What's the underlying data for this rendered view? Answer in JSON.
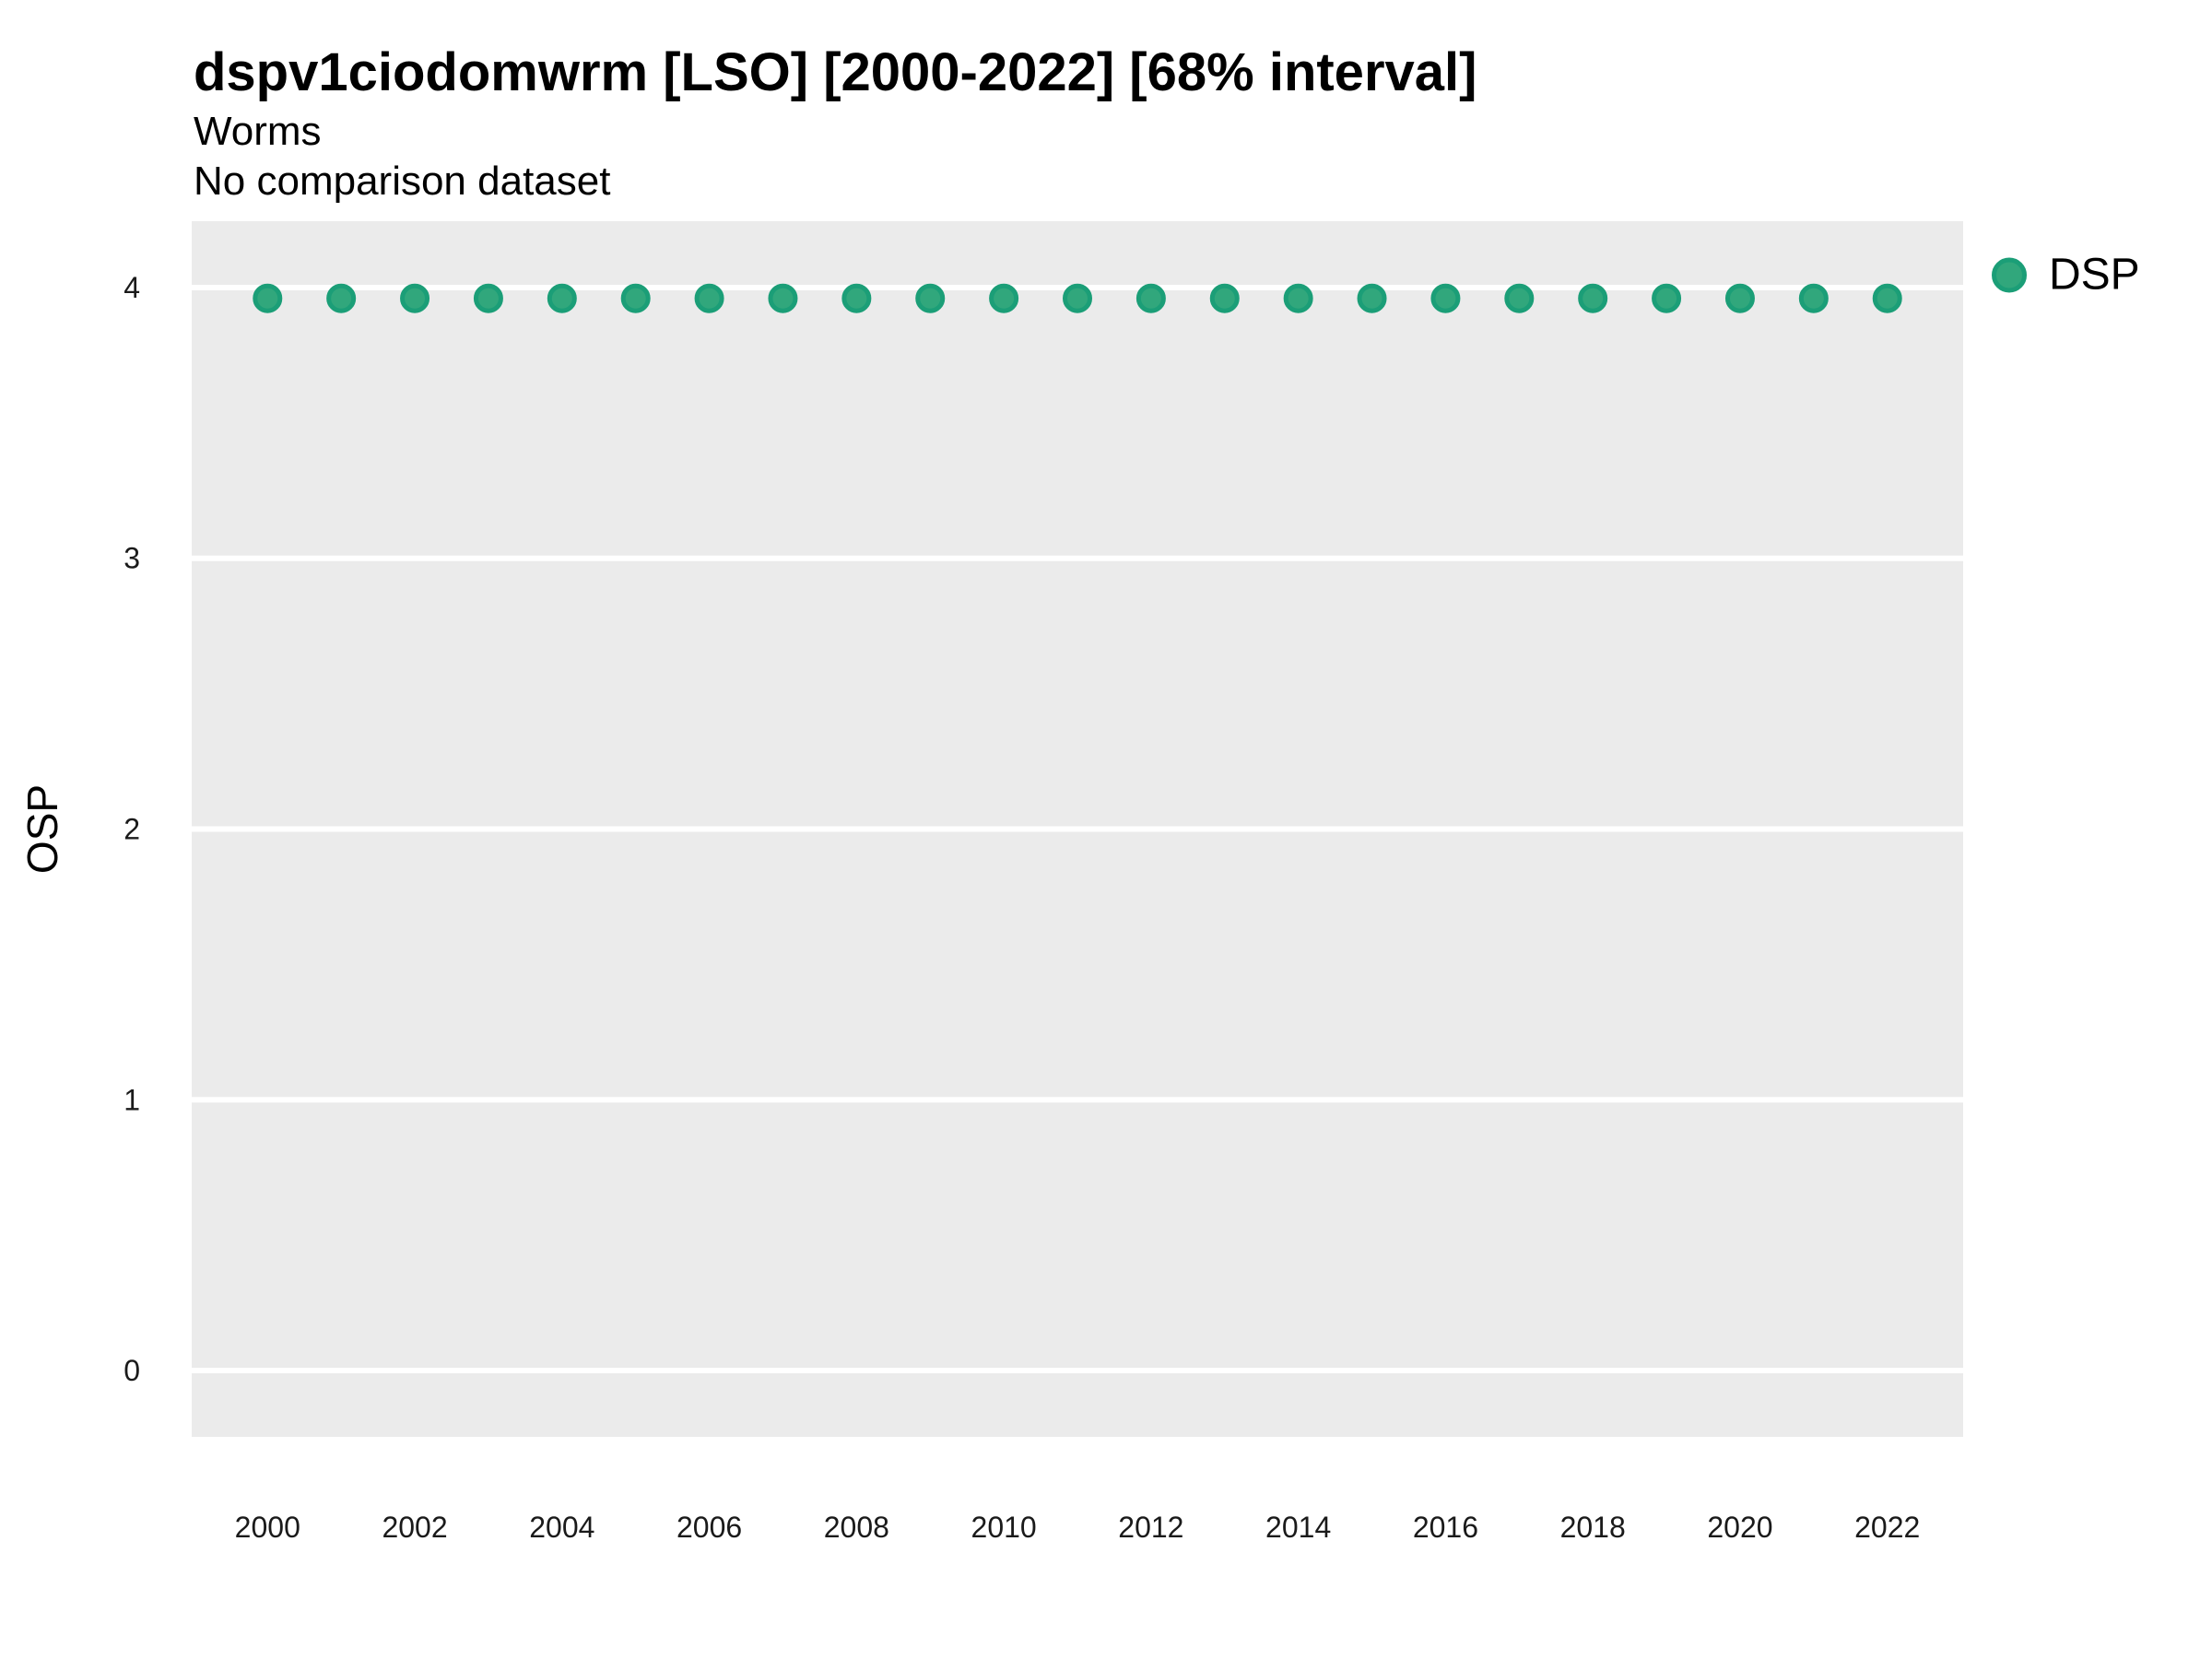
{
  "header": {
    "title": "dspv1ciodomwrm [LSO] [2000-2022] [68% interval]",
    "subtitle": "Worms",
    "comparison_note": "No comparison dataset"
  },
  "legend": {
    "label": "DSP"
  },
  "chart_data": {
    "type": "scatter",
    "title": "dspv1ciodomwrm [LSO] [2000-2022] [68% interval]",
    "subtitle": "Worms",
    "note": "No comparison dataset",
    "xlabel": "",
    "ylabel": "OSP",
    "series": [
      {
        "name": "DSP",
        "x": [
          2000,
          2001,
          2002,
          2003,
          2004,
          2005,
          2006,
          2007,
          2008,
          2009,
          2010,
          2011,
          2012,
          2013,
          2014,
          2015,
          2016,
          2017,
          2018,
          2019,
          2020,
          2021,
          2022
        ],
        "y": [
          3.96,
          3.96,
          3.96,
          3.96,
          3.96,
          3.96,
          3.96,
          3.96,
          3.96,
          3.96,
          3.96,
          3.96,
          3.96,
          3.96,
          3.96,
          3.96,
          3.96,
          3.96,
          3.96,
          3.96,
          3.96,
          3.96,
          3.96
        ]
      }
    ],
    "x_ticks": [
      2000,
      2002,
      2004,
      2006,
      2008,
      2010,
      2012,
      2014,
      2016,
      2018,
      2020,
      2022
    ],
    "y_ticks": [
      0,
      1,
      2,
      3,
      4
    ],
    "xlim": [
      1998.97,
      2023.03
    ],
    "ylim": [
      -0.245,
      4.245
    ],
    "grid": "horizontal-major-only",
    "legend_position": "right",
    "colors": {
      "panel_background": "#EBEBEB",
      "gridline": "#FFFFFF",
      "point_fill": "#31A77C",
      "point_stroke": "#1B9E77",
      "tick_text": "#1A1A1A",
      "axis_title_text": "#000000"
    }
  }
}
